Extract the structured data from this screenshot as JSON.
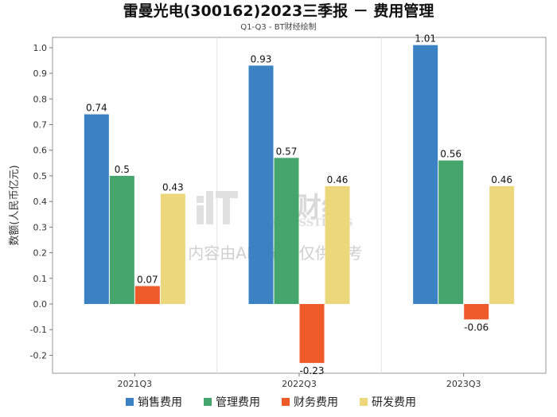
{
  "chart_data": {
    "type": "bar",
    "title": "雷曼光电(300162)2023三季报 － 费用管理",
    "subtitle": "Q1-Q3 - BT财经绘制",
    "xlabel": "",
    "ylabel": "数额(人民币亿元)",
    "ylim": [
      -0.27,
      1.04
    ],
    "yticks": [
      -0.2,
      -0.1,
      0.0,
      0.1,
      0.2,
      0.3,
      0.4,
      0.5,
      0.6,
      0.7,
      0.8,
      0.9,
      1.0
    ],
    "ytick_labels": [
      "-0.2",
      "-0.1",
      "0.0",
      "0.1",
      "0.2",
      "0.3",
      "0.4",
      "0.5",
      "0.6",
      "0.7",
      "0.8",
      "0.9",
      "1.0"
    ],
    "categories": [
      "2021Q3",
      "2022Q3",
      "2023Q3"
    ],
    "series": [
      {
        "name": "销售费用",
        "color": "#3a82c4",
        "values": [
          0.74,
          0.93,
          1.01
        ],
        "labels": [
          "0.74",
          "0.93",
          "1.01"
        ]
      },
      {
        "name": "管理费用",
        "color": "#44a66c",
        "values": [
          0.5,
          0.57,
          0.56
        ],
        "labels": [
          "0.5",
          "0.57",
          "0.56"
        ]
      },
      {
        "name": "财务费用",
        "color": "#ee5a2a",
        "values": [
          0.07,
          -0.23,
          -0.06
        ],
        "labels": [
          "0.07",
          "-0.23",
          "-0.06"
        ]
      },
      {
        "name": "研发费用",
        "color": "#ecd77c",
        "values": [
          0.43,
          0.46,
          0.46
        ],
        "labels": [
          "0.43",
          "0.46",
          "0.46"
        ]
      }
    ],
    "legend_position": "bottom",
    "grid": "vertical"
  },
  "watermark": {
    "brand": "BT财经",
    "brand_en": "BUSINESSTIMES",
    "notice": "内容由AI生成，仅供参考"
  }
}
